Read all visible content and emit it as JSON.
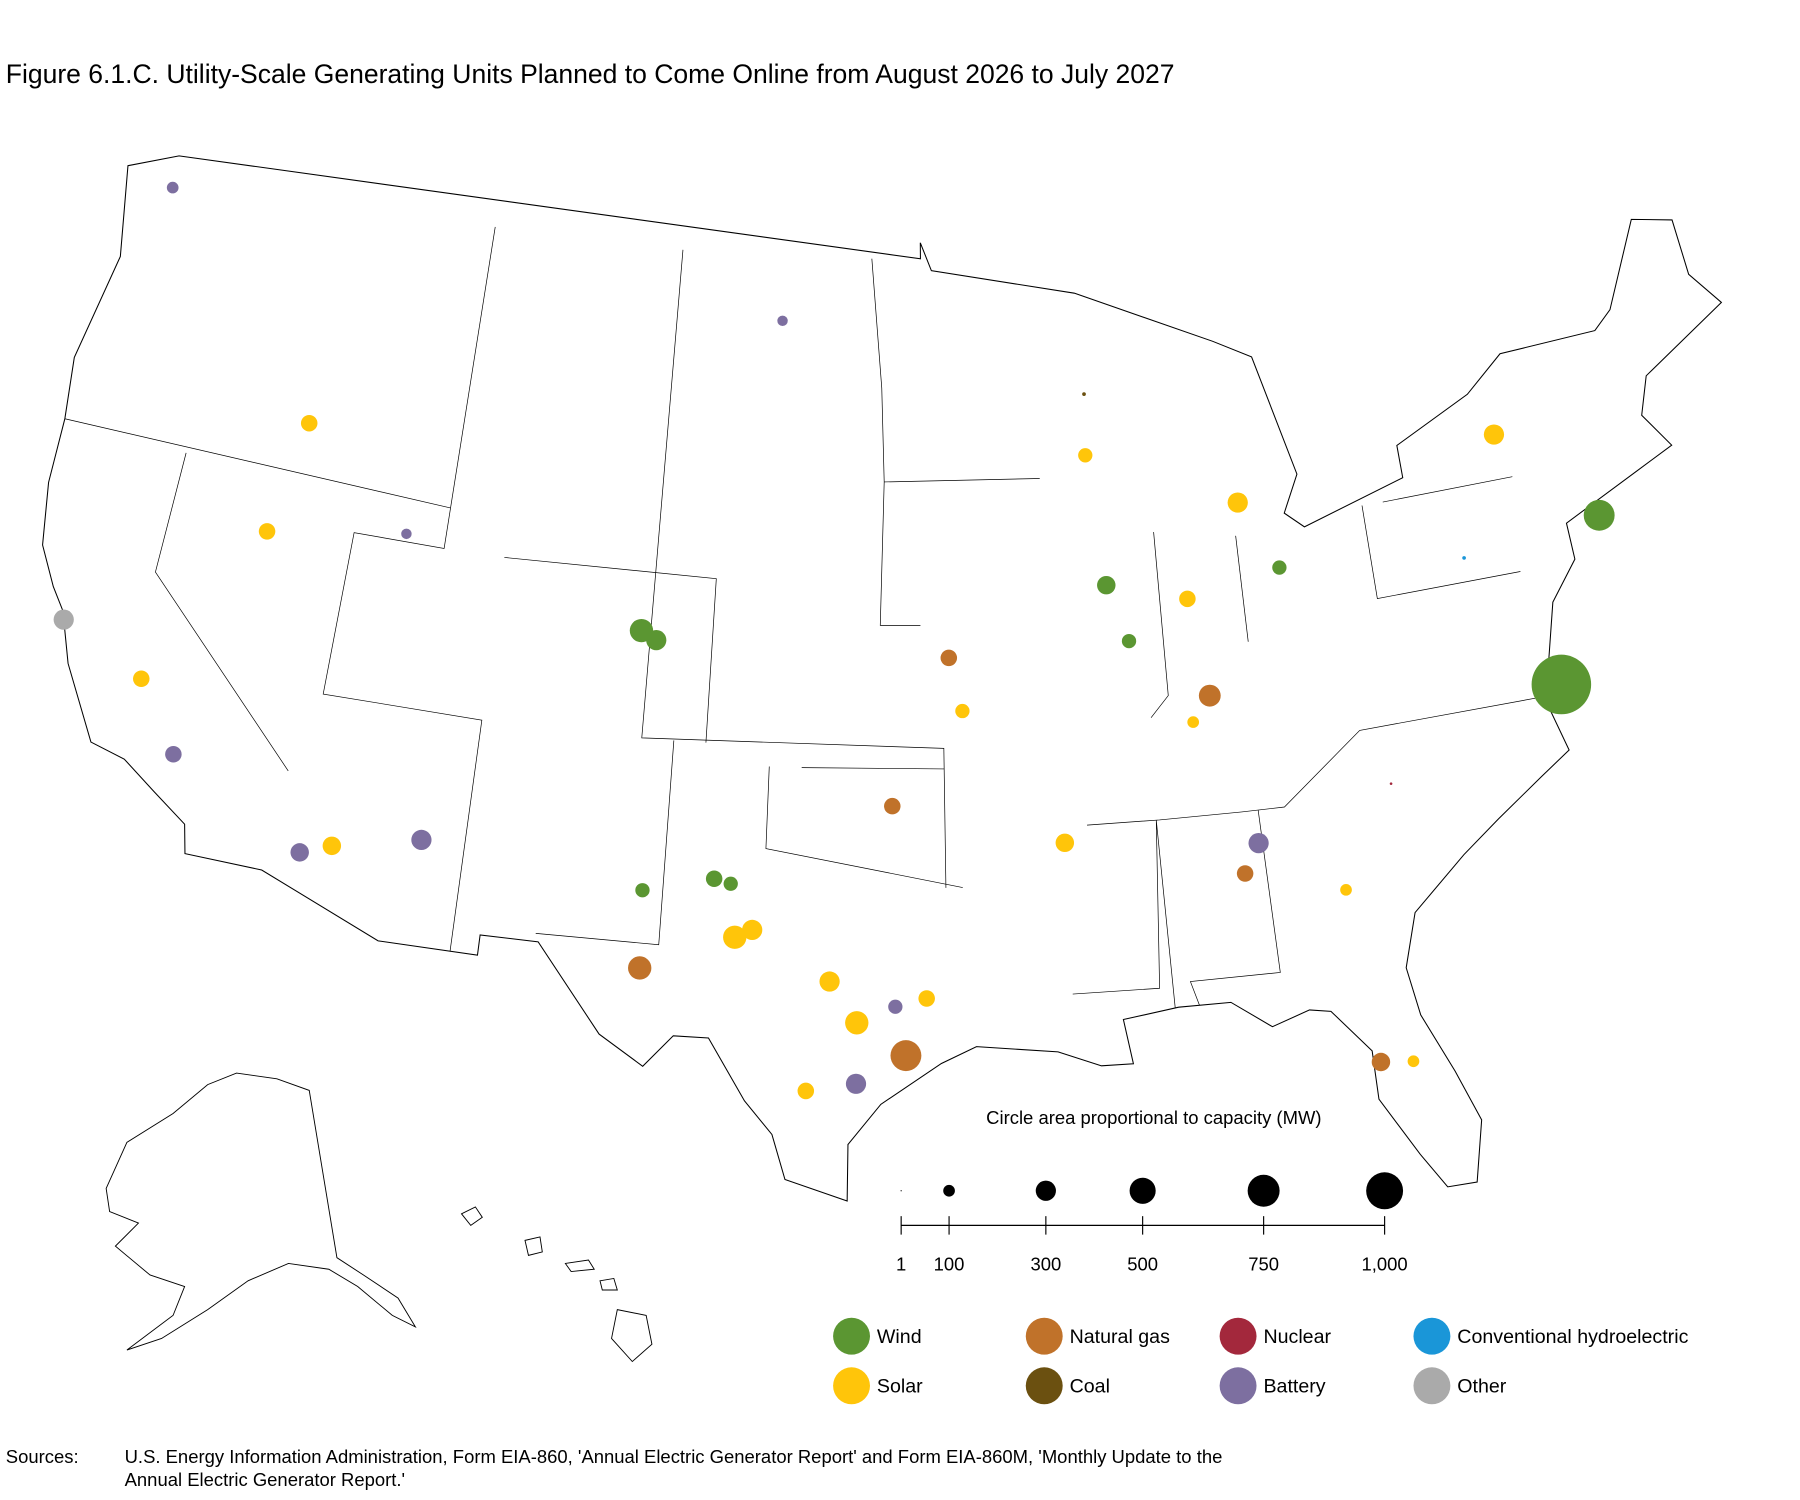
{
  "title": "Figure 6.1.C. Utility-Scale Generating Units Planned to Come Online from August 2026 to July 2027",
  "size_legend": {
    "title": "Circle area proportional to capacity (MW)",
    "xlim": [
      1,
      1000
    ],
    "ticks": [
      1,
      100,
      300,
      500,
      750,
      {
        "value": 1000,
        "label": "1,000"
      }
    ]
  },
  "legend": [
    {
      "name": "Wind",
      "color": "#5b9632"
    },
    {
      "name": "Solar",
      "color": "#ffc50a"
    },
    {
      "name": "Natural gas",
      "color": "#c0722a"
    },
    {
      "name": "Coal",
      "color": "#6b5010"
    },
    {
      "name": "Nuclear",
      "color": "#a3283c"
    },
    {
      "name": "Battery",
      "color": "#7d6fa0"
    },
    {
      "name": "Conventional hydroelectric",
      "color": "#1a96d8"
    },
    {
      "name": "Other",
      "color": "#aaaaaa"
    }
  ],
  "plants": [
    {
      "fuel": 0,
      "lon": -75.3,
      "lat": 36.8,
      "mw": 2600
    },
    {
      "fuel": 0,
      "lon": -72.9,
      "lat": 40.6,
      "mw": 700
    },
    {
      "fuel": 2,
      "lon": -95.8,
      "lat": 29.5,
      "mw": 700
    },
    {
      "fuel": 0,
      "lon": -104.3,
      "lat": 39.6,
      "mw": 400
    },
    {
      "fuel": 2,
      "lon": -103.5,
      "lat": 31.4,
      "mw": 400
    },
    {
      "fuel": 1,
      "lon": -100.8,
      "lat": 32.3,
      "mw": 400
    },
    {
      "fuel": 1,
      "lon": -97.2,
      "lat": 30.3,
      "mw": 400
    },
    {
      "fuel": 2,
      "lon": -86.2,
      "lat": 37.9,
      "mw": 350
    },
    {
      "fuel": 7,
      "lon": -122.4,
      "lat": 37.3,
      "mw": 300
    },
    {
      "fuel": 0,
      "lon": -103.8,
      "lat": 39.4,
      "mw": 300
    },
    {
      "fuel": 1,
      "lon": -75.7,
      "lat": 43.1,
      "mw": 300
    },
    {
      "fuel": 1,
      "lon": -100.3,
      "lat": 32.5,
      "mw": 300
    },
    {
      "fuel": 1,
      "lon": -98.0,
      "lat": 31.3,
      "mw": 300
    },
    {
      "fuel": 1,
      "lon": -84.6,
      "lat": 42.5,
      "mw": 300
    },
    {
      "fuel": 5,
      "lon": -85.2,
      "lat": 34.2,
      "mw": 300
    },
    {
      "fuel": 5,
      "lon": -110.3,
      "lat": 33.9,
      "mw": 300
    },
    {
      "fuel": 5,
      "lon": -97.2,
      "lat": 28.8,
      "mw": 300
    },
    {
      "fuel": 1,
      "lon": -91.0,
      "lat": 34.6,
      "mw": 250
    },
    {
      "fuel": 1,
      "lon": -112.9,
      "lat": 33.4,
      "mw": 250
    },
    {
      "fuel": 2,
      "lon": -82.5,
      "lat": 28.5,
      "mw": 250
    },
    {
      "fuel": 5,
      "lon": -113.8,
      "lat": 33.1,
      "mw": 250
    },
    {
      "fuel": 0,
      "lon": -89.2,
      "lat": 40.8,
      "mw": 250
    },
    {
      "fuel": 0,
      "lon": -101.5,
      "lat": 33.7,
      "mw": 200
    },
    {
      "fuel": 1,
      "lon": -95.2,
      "lat": 30.9,
      "mw": 200
    },
    {
      "fuel": 1,
      "lon": -98.6,
      "lat": 28.6,
      "mw": 200
    },
    {
      "fuel": 1,
      "lon": -86.6,
      "lat": 40.3,
      "mw": 200
    },
    {
      "fuel": 1,
      "lon": -116.8,
      "lat": 40.6,
      "mw": 200
    },
    {
      "fuel": 1,
      "lon": -116.2,
      "lat": 43.4,
      "mw": 200
    },
    {
      "fuel": 1,
      "lon": -119.6,
      "lat": 36.4,
      "mw": 200
    },
    {
      "fuel": 2,
      "lon": -85.7,
      "lat": 33.5,
      "mw": 200
    },
    {
      "fuel": 2,
      "lon": -96.2,
      "lat": 35.6,
      "mw": 200
    },
    {
      "fuel": 2,
      "lon": -94.4,
      "lat": 39.2,
      "mw": 200
    },
    {
      "fuel": 5,
      "lon": -118.1,
      "lat": 34.8,
      "mw": 200
    },
    {
      "fuel": 0,
      "lon": -101.0,
      "lat": 33.6,
      "mw": 150
    },
    {
      "fuel": 0,
      "lon": -103.6,
      "lat": 33.3,
      "mw": 150
    },
    {
      "fuel": 0,
      "lon": -88.6,
      "lat": 39.4,
      "mw": 150
    },
    {
      "fuel": 0,
      "lon": -83.5,
      "lat": 40.8,
      "mw": 150
    },
    {
      "fuel": 1,
      "lon": -94.0,
      "lat": 37.9,
      "mw": 150
    },
    {
      "fuel": 1,
      "lon": -89.6,
      "lat": 44.0,
      "mw": 150
    },
    {
      "fuel": 5,
      "lon": -96.1,
      "lat": 30.7,
      "mw": 150
    },
    {
      "fuel": 1,
      "lon": -82.8,
      "lat": 32.8,
      "mw": 100
    },
    {
      "fuel": 1,
      "lon": -81.6,
      "lat": 28.4,
      "mw": 100
    },
    {
      "fuel": 1,
      "lon": -86.8,
      "lat": 37.3,
      "mw": 100
    },
    {
      "fuel": 5,
      "lon": -122.9,
      "lat": 48.2,
      "mw": 100
    },
    {
      "fuel": 5,
      "lon": -100.2,
      "lat": 47.4,
      "mw": 80
    },
    {
      "fuel": 5,
      "lon": -112.3,
      "lat": 41.2,
      "mw": 80
    },
    {
      "fuel": 3,
      "lon": -89.5,
      "lat": 45.5,
      "mw": 10
    },
    {
      "fuel": 4,
      "lon": -81.0,
      "lat": 35.2,
      "mw": 5
    },
    {
      "fuel": 6,
      "lon": -77.5,
      "lat": 40.3,
      "mw": 10
    }
  ],
  "sources": {
    "label": "Sources:",
    "lines": [
      "U.S. Energy Information Administration, Form EIA-860, 'Annual Electric Generator Report' and Form EIA-860M, 'Monthly Update to the",
      "Annual Electric Generator Report.'"
    ]
  }
}
